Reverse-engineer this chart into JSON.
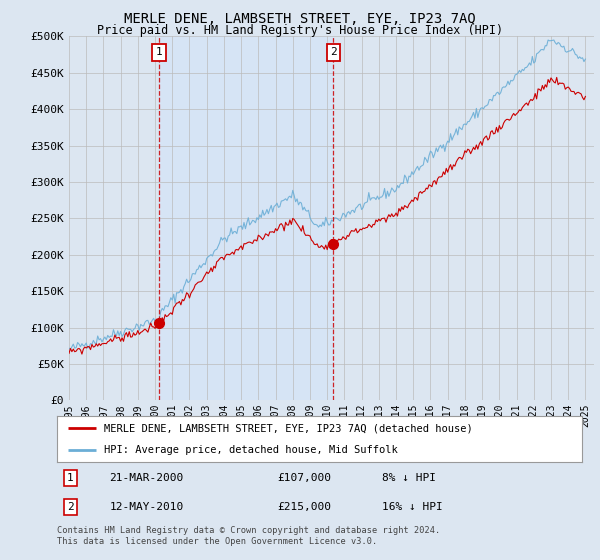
{
  "title": "MERLE DENE, LAMBSETH STREET, EYE, IP23 7AQ",
  "subtitle": "Price paid vs. HM Land Registry's House Price Index (HPI)",
  "xlim_start": 1995.0,
  "xlim_end": 2025.5,
  "ylim_min": 0,
  "ylim_max": 500000,
  "yticks": [
    0,
    50000,
    100000,
    150000,
    200000,
    250000,
    300000,
    350000,
    400000,
    450000,
    500000
  ],
  "ytick_labels": [
    "£0",
    "£50K",
    "£100K",
    "£150K",
    "£200K",
    "£250K",
    "£300K",
    "£350K",
    "£400K",
    "£450K",
    "£500K"
  ],
  "xtick_years": [
    1995,
    1996,
    1997,
    1998,
    1999,
    2000,
    2001,
    2002,
    2003,
    2004,
    2005,
    2006,
    2007,
    2008,
    2009,
    2010,
    2011,
    2012,
    2013,
    2014,
    2015,
    2016,
    2017,
    2018,
    2019,
    2020,
    2021,
    2022,
    2023,
    2024,
    2025
  ],
  "sale1_x": 2000.22,
  "sale1_y": 107000,
  "sale1_label": "1",
  "sale1_date": "21-MAR-2000",
  "sale1_price": "£107,000",
  "sale1_hpi": "8% ↓ HPI",
  "sale2_x": 2010.36,
  "sale2_y": 215000,
  "sale2_label": "2",
  "sale2_date": "12-MAY-2010",
  "sale2_price": "£215,000",
  "sale2_hpi": "16% ↓ HPI",
  "red_color": "#cc0000",
  "blue_color": "#6baed6",
  "shade_color": "#d6e4f5",
  "background_color": "#dce6f1",
  "legend_line1": "MERLE DENE, LAMBSETH STREET, EYE, IP23 7AQ (detached house)",
  "legend_line2": "HPI: Average price, detached house, Mid Suffolk",
  "footer": "Contains HM Land Registry data © Crown copyright and database right 2024.\nThis data is licensed under the Open Government Licence v3.0."
}
